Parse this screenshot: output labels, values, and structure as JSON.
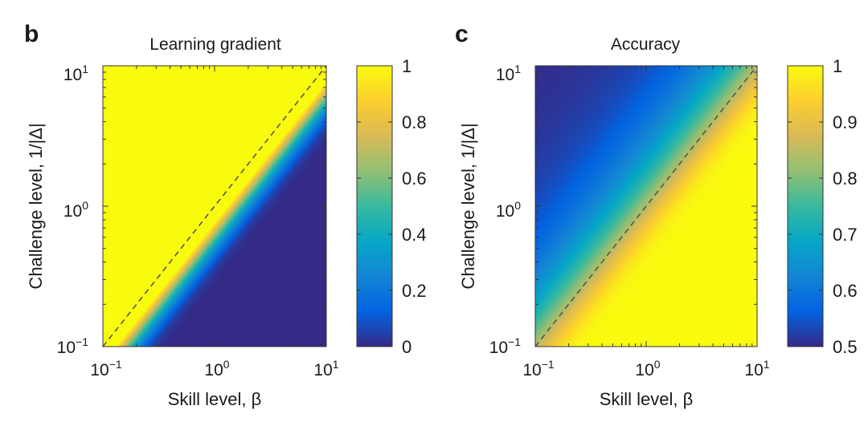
{
  "colors": {
    "parula": [
      "#352a87",
      "#0363e1",
      "#1485d4",
      "#06a7c6",
      "#38b99e",
      "#92bf73",
      "#d9ba56",
      "#fcce2e",
      "#f9fb0e"
    ],
    "dashed_line": "#555555",
    "axis": "#333333"
  },
  "chart_data": [
    {
      "type": "heatmap",
      "panel_label": "b",
      "title": "Learning gradient",
      "xlabel": "Skill level, β",
      "ylabel": "Challenge level, 1/|Δ|",
      "xscale": "log",
      "yscale": "log",
      "xlim": [
        0.1,
        10
      ],
      "ylim": [
        0.1,
        10
      ],
      "x_ticks": [
        {
          "base": "10",
          "exp": "−1"
        },
        {
          "base": "10",
          "exp": "0"
        },
        {
          "base": "10",
          "exp": "1"
        }
      ],
      "y_ticks": [
        {
          "base": "10",
          "exp": "−1"
        },
        {
          "base": "10",
          "exp": "0"
        },
        {
          "base": "10",
          "exp": "1"
        }
      ],
      "colorbar": {
        "min": 0,
        "max": 1,
        "ticks": [
          "0",
          "0.2",
          "0.4",
          "0.6",
          "0.8",
          "1"
        ],
        "tick_values": [
          0,
          0.2,
          0.4,
          0.6,
          0.8,
          1
        ]
      },
      "dashed_diagonal": true,
      "function": "learning_gradient"
    },
    {
      "type": "heatmap",
      "panel_label": "c",
      "title": "Accuracy",
      "xlabel": "Skill level, β",
      "ylabel": "Challenge level, 1/|Δ|",
      "xscale": "log",
      "yscale": "log",
      "xlim": [
        0.1,
        10
      ],
      "ylim": [
        0.1,
        10
      ],
      "x_ticks": [
        {
          "base": "10",
          "exp": "−1"
        },
        {
          "base": "10",
          "exp": "0"
        },
        {
          "base": "10",
          "exp": "1"
        }
      ],
      "y_ticks": [
        {
          "base": "10",
          "exp": "−1"
        },
        {
          "base": "10",
          "exp": "0"
        },
        {
          "base": "10",
          "exp": "1"
        }
      ],
      "colorbar": {
        "min": 0.5,
        "max": 1,
        "ticks": [
          "0.5",
          "0.6",
          "0.7",
          "0.8",
          "0.9",
          "1"
        ],
        "tick_values": [
          0.5,
          0.6,
          0.7,
          0.8,
          0.9,
          1
        ]
      },
      "dashed_diagonal": true,
      "function": "accuracy"
    }
  ]
}
